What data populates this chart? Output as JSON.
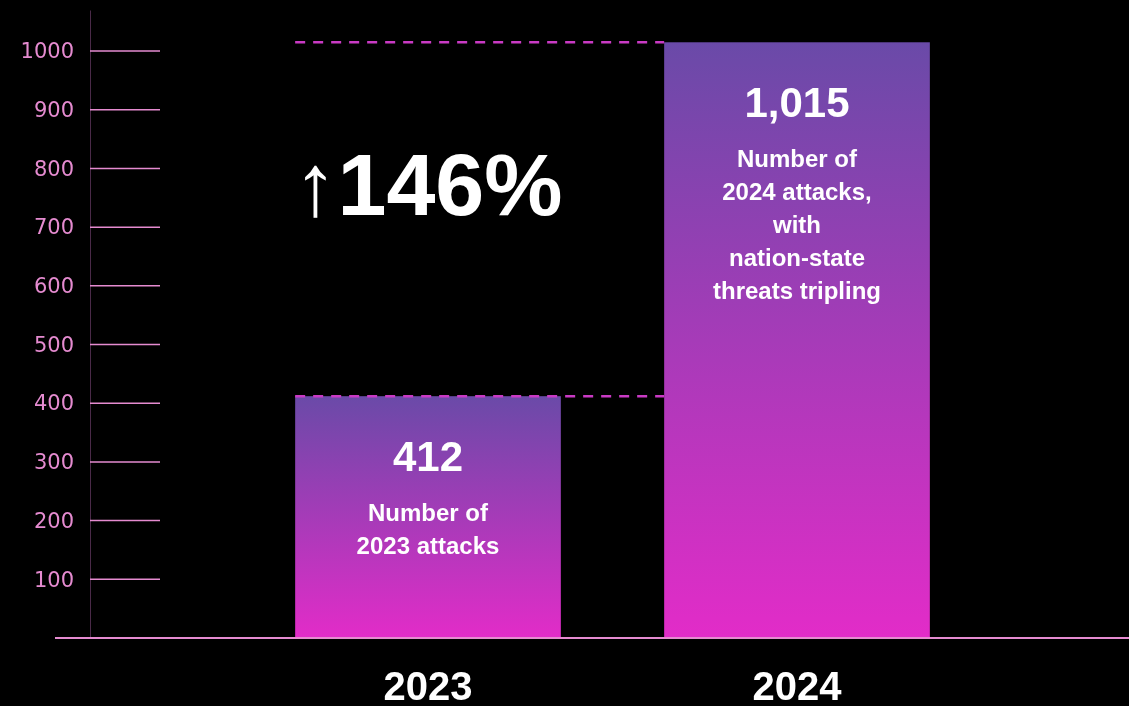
{
  "chart_data": {
    "type": "bar",
    "categories": [
      "2023",
      "2024"
    ],
    "values": [
      412,
      1015
    ],
    "value_labels": [
      "412",
      "1,015"
    ],
    "color": "#e22cc8",
    "ylim": [
      0,
      1070
    ],
    "yticks": [
      100,
      200,
      300,
      400,
      500,
      600,
      700,
      800,
      900,
      1000
    ],
    "grid": false,
    "ref_lines": [
      {
        "axis": "y",
        "value": 412,
        "color": "#c93ac4",
        "line_style": "dashed"
      },
      {
        "axis": "y",
        "value": 1015,
        "color": "#c93ac4",
        "line_style": "dashed"
      }
    ],
    "annotations": [
      "↑146%",
      "Number of\n2023 attacks",
      "Number of\n2024 attacks,\nwith\nnation-state\nthreats tripling"
    ]
  }
}
